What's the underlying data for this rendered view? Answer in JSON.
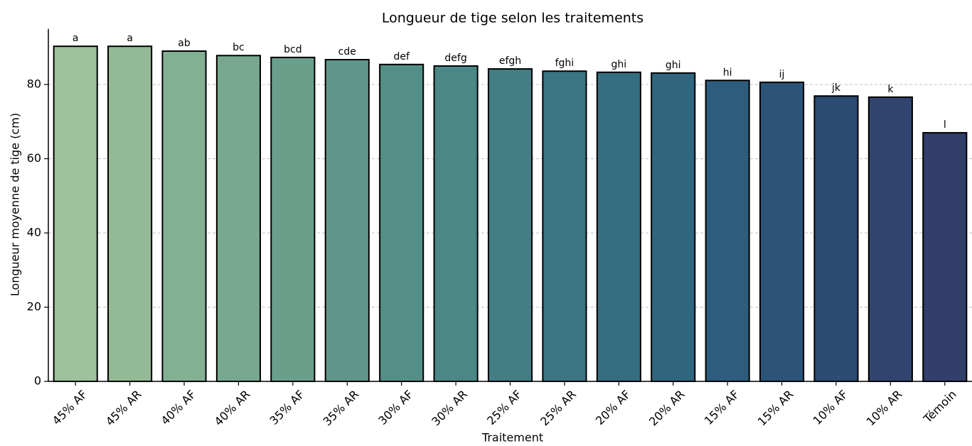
{
  "chart_data": {
    "type": "bar",
    "title": "Longueur de tige selon les traitements",
    "xlabel": "Traitement",
    "ylabel": "Longueur moyenne de tige (cm)",
    "categories": [
      "45% AF",
      "45% AR",
      "40% AF",
      "40% AR",
      "35% AF",
      "35% AR",
      "30% AF",
      "30% AR",
      "25% AF",
      "25% AR",
      "20% AF",
      "20% AR",
      "15% AF",
      "15% AR",
      "10% AF",
      "10% AR",
      "Témoin"
    ],
    "values": [
      90.3,
      90.3,
      89.0,
      87.8,
      87.3,
      86.7,
      85.4,
      85.0,
      84.2,
      83.6,
      83.3,
      83.1,
      81.1,
      80.6,
      76.9,
      76.6,
      67.0
    ],
    "annotations": [
      "a",
      "a",
      "ab",
      "bc",
      "bcd",
      "cde",
      "def",
      "defg",
      "efgh",
      "fghi",
      "ghi",
      "ghi",
      "hi",
      "ij",
      "jk",
      "k",
      "l"
    ],
    "colors": [
      "#9dc19a",
      "#93b995",
      "#83b093",
      "#77a88f",
      "#6a9f8c",
      "#5e9789",
      "#548f87",
      "#4a8786",
      "#427e84",
      "#3b7582",
      "#356d80",
      "#30657e",
      "#2d5c7c",
      "#2b5478",
      "#2d4b73",
      "#30446f",
      "#333e6a"
    ],
    "ylim": [
      0,
      95
    ],
    "yticks": [
      0,
      20,
      40,
      60,
      80
    ],
    "grid": true
  }
}
